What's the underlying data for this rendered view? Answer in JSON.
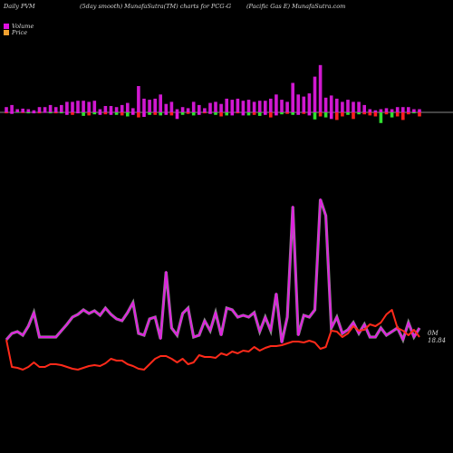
{
  "header": {
    "left": "Daily PVM",
    "middle": "(5day smooth) MunafaSutra(TM) charts for PCG-G",
    "right": "(Pacific Gas E) MunafaSutra.com"
  },
  "legend": {
    "items": [
      {
        "label": "Volume",
        "color": "#e010e0"
      },
      {
        "label": "Price",
        "color": "#f0a030"
      }
    ]
  },
  "price_tag": {
    "line1": "0M",
    "line2": "18.84"
  },
  "chart_data": {
    "type": "line",
    "x_count": 76,
    "xlabel": "",
    "ylabel": "",
    "volume_bars": {
      "up": [
        6,
        8,
        0,
        4,
        4,
        0,
        7,
        0,
        0,
        0,
        8,
        0,
        0,
        0,
        0,
        0,
        0,
        0,
        0,
        0,
        5,
        0,
        0,
        0,
        0,
        0,
        0,
        0,
        0,
        0,
        0,
        0,
        0,
        0,
        0,
        0,
        0,
        0,
        0,
        0,
        0,
        0,
        0,
        0,
        0,
        0,
        0,
        0,
        0,
        0,
        0,
        0,
        0,
        46,
        55,
        0,
        0,
        0,
        0,
        0,
        0,
        0,
        0,
        0,
        0,
        0,
        0,
        0,
        0,
        0,
        0,
        0,
        0,
        0,
        0,
        0
      ],
      "up_bar_heights_rel": [
        0.1,
        0.14,
        0.06,
        0.07,
        0.06,
        0.04,
        0.1,
        0.1,
        0.14,
        0.1,
        0.14,
        0.2,
        0.2,
        0.22,
        0.22,
        0.2,
        0.22,
        0.06,
        0.12,
        0.12,
        0.1,
        0.14,
        0.18,
        0.08,
        0.5,
        0.26,
        0.24,
        0.26,
        0.34,
        0.16,
        0.2,
        0.06,
        0.1,
        0.08,
        0.2,
        0.14,
        0.08,
        0.18,
        0.2,
        0.16,
        0.26,
        0.24,
        0.26,
        0.22,
        0.24,
        0.2,
        0.22,
        0.22,
        0.26,
        0.34,
        0.24,
        0.2,
        0.56,
        0.34,
        0.3,
        0.36,
        0.68,
        0.9,
        0.28,
        0.32,
        0.26,
        0.2,
        0.24,
        0.2,
        0.2,
        0.14,
        0.06,
        0.04,
        0.06,
        0.08,
        0.06,
        0.1,
        0.1,
        0.1,
        0.06,
        0.06
      ],
      "down_bar_heights_rel": [
        0.04,
        0.06,
        0.02,
        0.03,
        0.04,
        0.04,
        0.04,
        0.02,
        0.04,
        0.04,
        0.04,
        0.1,
        0.1,
        0.04,
        0.14,
        0.12,
        0.08,
        0.1,
        0.08,
        0.1,
        0.1,
        0.12,
        0.16,
        0.1,
        0.2,
        0.18,
        0.1,
        0.1,
        0.12,
        0.1,
        0.12,
        0.26,
        0.1,
        0.06,
        0.12,
        0.1,
        0.04,
        0.06,
        0.1,
        0.16,
        0.12,
        0.12,
        0.04,
        0.12,
        0.12,
        0.1,
        0.14,
        0.1,
        0.2,
        0.12,
        0.08,
        0.06,
        0.1,
        0.1,
        0.06,
        0.12,
        0.28,
        0.16,
        0.2,
        0.26,
        0.3,
        0.16,
        0.1,
        0.26,
        0.08,
        0.08,
        0.12,
        0.16,
        0.42,
        0.08,
        0.2,
        0.16,
        0.3,
        0.08,
        0.04,
        0.16
      ],
      "up_colors": "mixed",
      "down_colors": "mixed"
    },
    "series": [
      {
        "name": "Volume",
        "color": "#e020e0",
        "values": [
          375,
          368,
          366,
          370,
          360,
          345,
          372,
          372,
          372,
          372,
          365,
          358,
          350,
          347,
          342,
          346,
          343,
          348,
          340,
          347,
          352,
          354,
          345,
          334,
          368,
          370,
          352,
          350,
          374,
          300,
          362,
          370,
          346,
          340,
          372,
          370,
          354,
          365,
          345,
          370,
          340,
          342,
          350,
          348,
          350,
          345,
          366,
          350,
          365,
          324,
          378,
          350,
          228,
          370,
          348,
          350,
          342,
          220,
          238,
          362,
          350,
          368,
          364,
          356,
          368,
          358,
          372,
          372,
          362,
          370,
          366,
          362,
          375,
          356,
          372,
          362
        ]
      },
      {
        "name": "Price",
        "color": "#ff2a1a",
        "values": [
          375,
          405,
          406,
          408,
          405,
          400,
          405,
          405,
          402,
          402,
          403,
          405,
          407,
          408,
          406,
          404,
          403,
          404,
          401,
          396,
          398,
          398,
          402,
          404,
          407,
          408,
          402,
          396,
          393,
          393,
          396,
          400,
          396,
          402,
          400,
          392,
          394,
          394,
          395,
          390,
          392,
          388,
          390,
          387,
          388,
          383,
          387,
          384,
          382,
          382,
          381,
          379,
          377,
          377,
          378,
          376,
          378,
          385,
          383,
          365,
          366,
          372,
          368,
          360,
          365,
          364,
          358,
          360,
          356,
          347,
          342,
          362,
          365,
          370,
          364,
          372
        ]
      }
    ],
    "grid": false,
    "legend_position": "top-left"
  }
}
